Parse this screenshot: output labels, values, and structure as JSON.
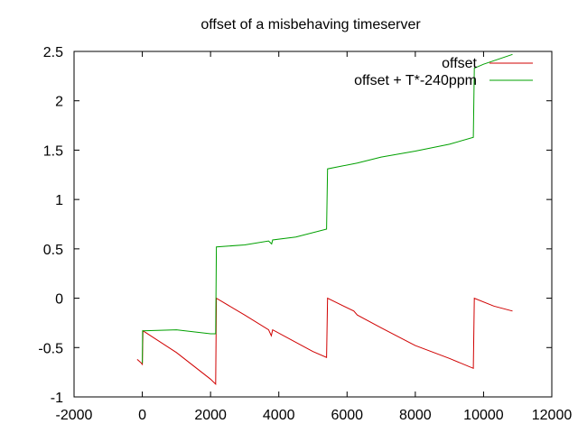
{
  "chart_data": {
    "type": "line",
    "title": "offset of a misbehaving timeserver",
    "xlabel": "",
    "ylabel": "",
    "xlim": [
      -2000,
      12000
    ],
    "ylim": [
      -1,
      2.5
    ],
    "x_ticks": [
      -2000,
      0,
      2000,
      4000,
      6000,
      8000,
      10000,
      12000
    ],
    "y_ticks": [
      -1,
      -0.5,
      0,
      0.5,
      1,
      1.5,
      2,
      2.5
    ],
    "x_tick_labels": [
      "-2000",
      "0",
      "2000",
      "4000",
      "6000",
      "8000",
      "10000",
      "12000"
    ],
    "y_tick_labels": [
      "-1",
      "-0.5",
      "0",
      "0.5",
      "1",
      "1.5",
      "2",
      "2.5"
    ],
    "grid": false,
    "legend_position": "top-right",
    "series": [
      {
        "name": "offset",
        "color": "#d00000",
        "points": [
          [
            -150,
            -0.62
          ],
          [
            -50,
            -0.65
          ],
          [
            0,
            -0.67
          ],
          [
            20,
            -0.33
          ],
          [
            1000,
            -0.55
          ],
          [
            2000,
            -0.82
          ],
          [
            2150,
            -0.87
          ],
          [
            2170,
            0.0
          ],
          [
            3000,
            -0.17
          ],
          [
            3700,
            -0.32
          ],
          [
            3780,
            -0.38
          ],
          [
            3820,
            -0.32
          ],
          [
            5000,
            -0.54
          ],
          [
            5400,
            -0.6
          ],
          [
            5430,
            0.0
          ],
          [
            6200,
            -0.13
          ],
          [
            6300,
            -0.17
          ],
          [
            7000,
            -0.3
          ],
          [
            8000,
            -0.48
          ],
          [
            9000,
            -0.61
          ],
          [
            9700,
            -0.71
          ],
          [
            9730,
            0.0
          ],
          [
            10300,
            -0.08
          ],
          [
            10850,
            -0.13
          ]
        ]
      },
      {
        "name": "offset + T*-240ppm",
        "color": "#00a000",
        "points": [
          [
            0,
            -0.66
          ],
          [
            10,
            -0.33
          ],
          [
            1000,
            -0.32
          ],
          [
            2000,
            -0.36
          ],
          [
            2150,
            -0.36
          ],
          [
            2170,
            0.52
          ],
          [
            3000,
            0.54
          ],
          [
            3700,
            0.58
          ],
          [
            3790,
            0.55
          ],
          [
            3820,
            0.59
          ],
          [
            4500,
            0.62
          ],
          [
            5400,
            0.7
          ],
          [
            5430,
            1.31
          ],
          [
            6300,
            1.37
          ],
          [
            7000,
            1.43
          ],
          [
            8000,
            1.49
          ],
          [
            9000,
            1.56
          ],
          [
            9700,
            1.63
          ],
          [
            9730,
            2.33
          ],
          [
            10000,
            2.37
          ],
          [
            10850,
            2.47
          ]
        ]
      }
    ]
  }
}
